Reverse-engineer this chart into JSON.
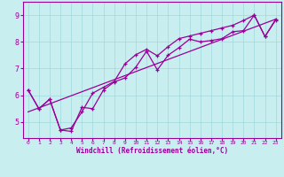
{
  "xlabel": "Windchill (Refroidissement éolien,°C)",
  "background_color": "#c8eef0",
  "line_color": "#990099",
  "x_ticks": [
    0,
    1,
    2,
    3,
    4,
    5,
    6,
    7,
    8,
    9,
    10,
    11,
    12,
    13,
    14,
    15,
    16,
    17,
    18,
    19,
    20,
    21,
    22,
    23
  ],
  "y_ticks": [
    5,
    6,
    7,
    8,
    9
  ],
  "xlim": [
    -0.5,
    23.5
  ],
  "ylim": [
    4.4,
    9.5
  ],
  "line1_x": [
    0,
    1,
    2,
    3,
    4,
    5,
    6,
    7,
    8,
    9,
    10,
    11,
    12,
    13,
    14,
    15,
    16,
    17,
    18,
    19,
    20,
    21,
    22,
    23
  ],
  "line1_y": [
    6.2,
    5.5,
    5.85,
    4.7,
    4.65,
    5.55,
    5.5,
    6.2,
    6.5,
    6.65,
    7.05,
    7.65,
    6.95,
    7.5,
    7.78,
    8.1,
    8.0,
    8.05,
    8.12,
    8.38,
    8.42,
    9.0,
    8.2,
    8.82
  ],
  "line2_x": [
    0,
    1,
    2,
    3,
    4,
    5,
    6,
    7,
    8,
    9,
    10,
    11,
    12,
    13,
    14,
    15,
    16,
    17,
    18,
    19,
    20,
    21,
    22,
    23
  ],
  "line2_y": [
    6.2,
    5.5,
    5.85,
    4.7,
    4.78,
    5.38,
    6.08,
    6.3,
    6.52,
    7.18,
    7.52,
    7.72,
    7.48,
    7.82,
    8.12,
    8.22,
    8.32,
    8.42,
    8.52,
    8.62,
    8.8,
    9.0,
    8.2,
    8.85
  ],
  "line3_x": [
    0,
    23
  ],
  "line3_y": [
    5.38,
    8.85
  ]
}
